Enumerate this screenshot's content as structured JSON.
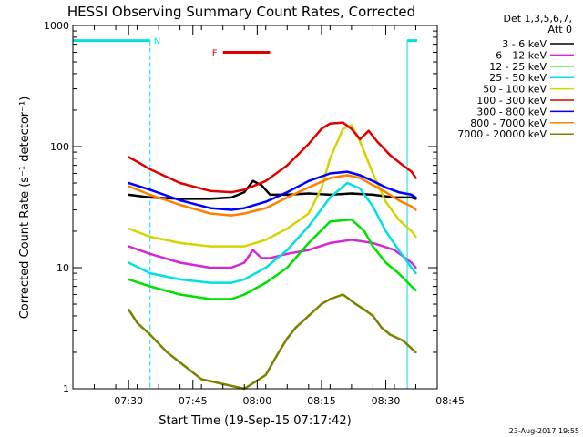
{
  "chart_data": {
    "type": "line",
    "title": "HESSI Observing Summary Count Rates, Corrected",
    "xlabel": "Start Time (19-Sep-15 07:17:42)",
    "ylabel": "Corrected Count Rate (s⁻¹ detector⁻¹)",
    "yscale": "log",
    "ylim": [
      1,
      1000
    ],
    "xlim_minutes_after_0717": [
      0,
      85
    ],
    "y_ticks": [
      {
        "value": 1,
        "label": "1"
      },
      {
        "value": 10,
        "label": "10"
      },
      {
        "value": 100,
        "label": "100"
      },
      {
        "value": 1000,
        "label": "1000"
      }
    ],
    "x_ticks": [
      {
        "minutes": 13,
        "label": "07:30"
      },
      {
        "minutes": 28,
        "label": "07:45"
      },
      {
        "minutes": 43,
        "label": "08:00"
      },
      {
        "minutes": 58,
        "label": "08:15"
      },
      {
        "minutes": 73,
        "label": "08:30"
      },
      {
        "minutes": 88,
        "label": "08:45"
      }
    ],
    "legend_header": [
      "Det 1,3,5,6,7,",
      "Att 0"
    ],
    "legend_position": "right, outside plot",
    "annotations": {
      "night_label": "N",
      "flare_label": "F",
      "night_intervals_minutes": [
        [
          0,
          18
        ],
        [
          78,
          103
        ]
      ],
      "flare_interval_minutes": [
        35,
        46
      ]
    },
    "series": [
      {
        "name": "3 - 6 keV",
        "color": "#000000",
        "x": [
          13,
          18,
          25,
          32,
          37,
          40,
          42,
          44,
          46,
          50,
          55,
          60,
          65,
          70,
          75,
          79,
          80
        ],
        "values": [
          40,
          38,
          37,
          37,
          38,
          42,
          52,
          48,
          40,
          40,
          41,
          40,
          41,
          40,
          38,
          38,
          37
        ]
      },
      {
        "name": "6 - 12 keV",
        "color": "#d428d4",
        "x": [
          13,
          18,
          25,
          32,
          37,
          40,
          42,
          44,
          46,
          50,
          55,
          60,
          65,
          70,
          75,
          79,
          80
        ],
        "values": [
          15,
          13,
          11,
          10,
          10,
          11,
          14,
          12,
          12,
          13,
          14,
          16,
          17,
          16,
          14,
          11,
          10
        ]
      },
      {
        "name": "12 - 25 keV",
        "color": "#00e000",
        "x": [
          13,
          18,
          25,
          32,
          37,
          40,
          45,
          50,
          55,
          60,
          65,
          68,
          70,
          73,
          76,
          79,
          80
        ],
        "values": [
          8,
          7,
          6,
          5.5,
          5.5,
          6,
          7.5,
          10,
          16,
          24,
          25,
          20,
          15,
          11,
          9,
          7,
          6.5
        ]
      },
      {
        "name": "25 - 50 keV",
        "color": "#00e0e0",
        "x": [
          13,
          18,
          25,
          32,
          37,
          40,
          45,
          50,
          55,
          60,
          64,
          67,
          70,
          73,
          76,
          79,
          80
        ],
        "values": [
          11,
          9,
          8,
          7.5,
          7.5,
          8,
          10,
          14,
          22,
          38,
          50,
          45,
          32,
          20,
          14,
          10,
          9
        ]
      },
      {
        "name": "50 - 100 keV",
        "color": "#d4d400",
        "x": [
          13,
          18,
          25,
          32,
          37,
          40,
          45,
          50,
          55,
          58,
          60,
          63,
          65,
          67,
          70,
          73,
          76,
          79,
          80
        ],
        "values": [
          21,
          18,
          16,
          15,
          15,
          15,
          17,
          21,
          28,
          45,
          80,
          140,
          150,
          110,
          60,
          35,
          25,
          20,
          18
        ]
      },
      {
        "name": "100 - 300 keV",
        "color": "#e00000",
        "x": [
          13,
          15,
          18,
          25,
          32,
          37,
          40,
          45,
          50,
          55,
          58,
          60,
          63,
          65,
          67,
          69,
          71,
          74,
          77,
          79,
          80
        ],
        "values": [
          82,
          75,
          65,
          50,
          43,
          42,
          44,
          52,
          70,
          105,
          140,
          155,
          158,
          140,
          115,
          135,
          110,
          85,
          70,
          62,
          55
        ]
      },
      {
        "name": "300 - 800 keV",
        "color": "#0000ff",
        "x": [
          13,
          18,
          25,
          32,
          37,
          40,
          45,
          50,
          55,
          60,
          64,
          67,
          70,
          73,
          76,
          79,
          80
        ],
        "values": [
          50,
          44,
          36,
          31,
          30,
          31,
          35,
          42,
          52,
          60,
          62,
          58,
          52,
          46,
          42,
          40,
          38
        ]
      },
      {
        "name": "800 - 7000 keV",
        "color": "#ff8000",
        "x": [
          13,
          18,
          25,
          32,
          37,
          40,
          45,
          50,
          55,
          60,
          64,
          67,
          70,
          73,
          76,
          79,
          80
        ],
        "values": [
          47,
          40,
          33,
          28,
          27,
          28,
          31,
          38,
          46,
          55,
          58,
          55,
          48,
          42,
          36,
          32,
          30
        ]
      },
      {
        "name": "7000 - 20000 keV",
        "color": "#808000",
        "x": [
          13,
          15,
          18,
          22,
          30,
          40,
          45,
          48,
          50,
          52,
          55,
          58,
          60,
          63,
          66,
          68,
          70,
          72,
          74,
          77,
          80
        ],
        "values": [
          4.5,
          3.5,
          2.8,
          2,
          1.2,
          1,
          1.3,
          2,
          2.6,
          3.2,
          4,
          5,
          5.5,
          6,
          5,
          4.5,
          4,
          3.2,
          2.8,
          2.5,
          2
        ]
      }
    ]
  },
  "footer": {
    "date_stamp": "23-Aug-2017 19:55"
  }
}
